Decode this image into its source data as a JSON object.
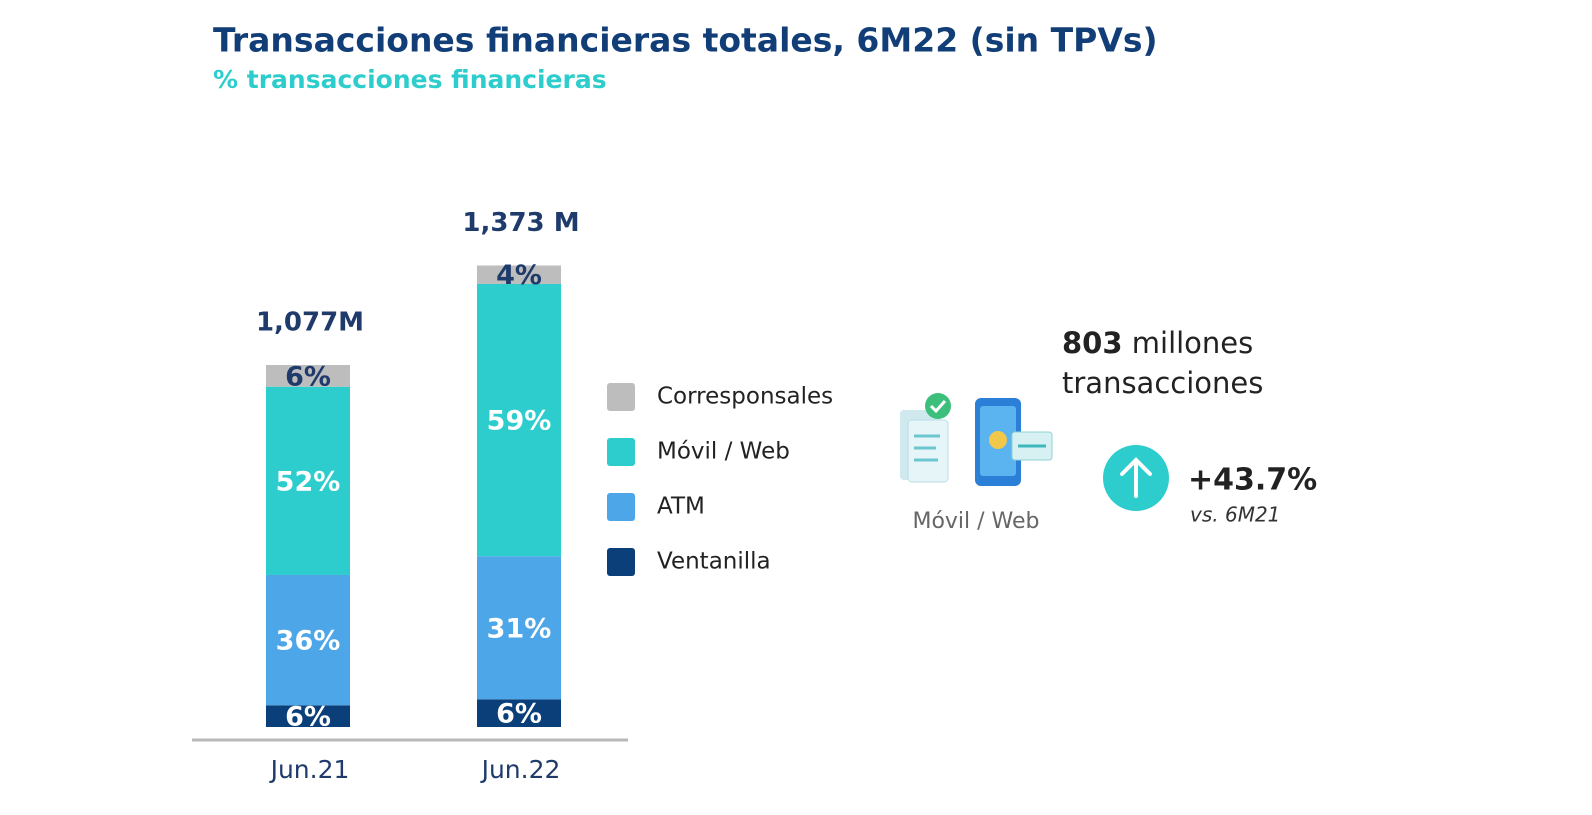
{
  "chart_data": {
    "type": "stacked_bar",
    "title": "Transacciones financieras totales, 6M22 (sin TPVs)",
    "subtitle": "% transacciones financieras",
    "categories": [
      "Jun.21",
      "Jun.22"
    ],
    "totals": {
      "values": [
        1077,
        1373
      ],
      "value_labels": [
        "1,077M",
        "1,373 M"
      ]
    },
    "series": [
      {
        "name": "Ventanilla",
        "color": "#0b3f7a",
        "values": [
          6,
          6
        ],
        "value_labels": [
          "6%",
          "6%"
        ],
        "label_color": "#ffffff"
      },
      {
        "name": "ATM",
        "color": "#4da6e8",
        "values": [
          36,
          31
        ],
        "value_labels": [
          "36%",
          "31%"
        ],
        "label_color": "#ffffff"
      },
      {
        "name": "Móvil / Web",
        "color": "#2ecdcd",
        "values": [
          52,
          59
        ],
        "value_labels": [
          "52%",
          "59%"
        ],
        "label_color": "#ffffff"
      },
      {
        "name": "Corresponsales",
        "color": "#bdbdbd",
        "values": [
          6,
          4
        ],
        "value_labels": [
          "6%",
          "4%"
        ],
        "label_color": "#1f3b6b"
      }
    ],
    "callout": {
      "amount": 803,
      "amount_unit": "millones",
      "amount_line2": "transacciones",
      "icon_label": "Móvil / Web",
      "change": "+43.7%",
      "change_note": "vs. 6M21"
    }
  }
}
